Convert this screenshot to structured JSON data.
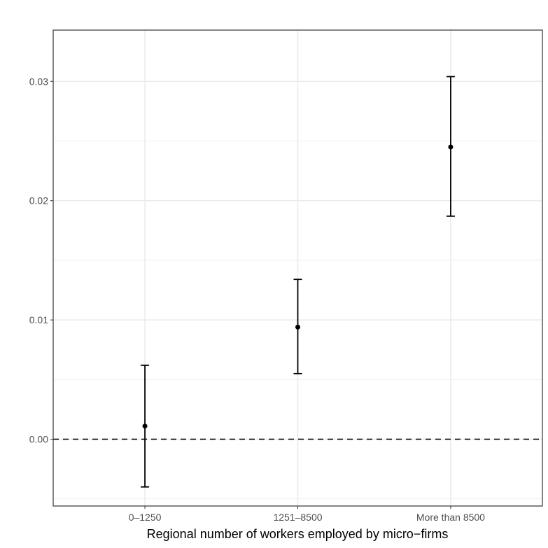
{
  "chart_data": {
    "type": "scatter",
    "title": "",
    "xlabel": "Regional number of workers employed by micro−firms",
    "ylabel": "",
    "categories": [
      "0–1250",
      "1251–8500",
      "More than 8500"
    ],
    "series": [
      {
        "values": [
          0.0011,
          0.0094,
          0.0245
        ],
        "lower": [
          -0.004,
          0.0055,
          0.0187
        ],
        "upper": [
          0.0062,
          0.0134,
          0.0304
        ]
      }
    ],
    "ylim": [
      -0.0056,
      0.0343
    ],
    "yticks": [
      0.0,
      0.01,
      0.02,
      0.03
    ],
    "ytick_labels": [
      "0.00",
      "0.01",
      "0.02",
      "0.03"
    ],
    "reference_line": {
      "y": 0.0,
      "style": "dashed"
    },
    "grid": true,
    "legend": "none",
    "colors": {
      "points": "#000000",
      "grid": "#ebebeb",
      "panel_border": "#333333"
    }
  }
}
